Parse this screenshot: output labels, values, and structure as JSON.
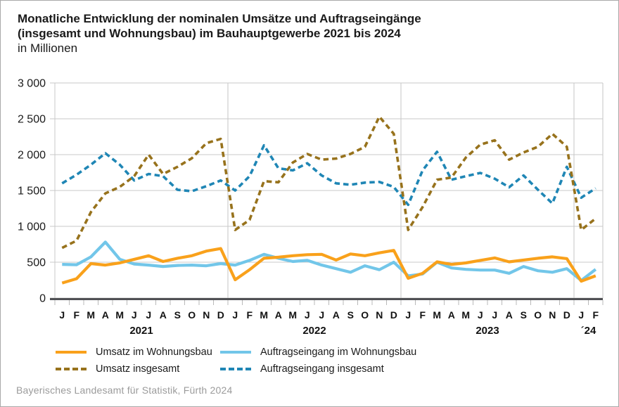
{
  "title": {
    "line1": "Monatliche Entwicklung der nominalen Umsätze und Auftragseingänge",
    "line2": "(insgesamt und Wohnungsbau) im Bauhauptgewerbe 2021 bis 2024",
    "line3": "in Millionen"
  },
  "footer": {
    "source": "Bayerisches Landesamt für Statistik, Fürth 2024"
  },
  "legend": {
    "items": [
      {
        "label": "Umsatz im Wohnungsbau",
        "color": "#F9A11B",
        "style": "solid"
      },
      {
        "label": "Umsatz insgesamt",
        "color": "#97721C",
        "style": "dashed"
      },
      {
        "label": "Auftragseingang im Wohnungsbau",
        "color": "#72C6E9",
        "style": "solid"
      },
      {
        "label": "Auftragseingang insgesamt",
        "color": "#1F86B5",
        "style": "dashed"
      }
    ]
  },
  "chart_data": {
    "type": "line",
    "title": "Monatliche Entwicklung der nominalen Umsätze und Auftragseingänge (insgesamt und Wohnungsbau) im Bauhauptgewerbe 2021 bis 2024",
    "ylabel": "in Millionen",
    "xlabel": "",
    "grid": true,
    "legend_position": "bottom",
    "ylim": [
      0,
      3000
    ],
    "yticks": [
      {
        "value": 3000,
        "label": "3 000"
      },
      {
        "value": 2500,
        "label": "2 500"
      },
      {
        "value": 2000,
        "label": "2 000"
      },
      {
        "value": 1500,
        "label": "1 500"
      },
      {
        "value": 1000,
        "label": "1 000"
      },
      {
        "value": 500,
        "label": "500"
      },
      {
        "value": 0,
        "label": "0"
      }
    ],
    "months": [
      "J",
      "F",
      "M",
      "A",
      "M",
      "J",
      "J",
      "A",
      "S",
      "O",
      "N",
      "D",
      "J",
      "F",
      "M",
      "A",
      "M",
      "J",
      "J",
      "A",
      "S",
      "O",
      "N",
      "D",
      "J",
      "F",
      "M",
      "A",
      "M",
      "J",
      "J",
      "A",
      "S",
      "O",
      "N",
      "D",
      "J",
      "F"
    ],
    "years": [
      {
        "label": "2021",
        "months": 12
      },
      {
        "label": "2022",
        "months": 12
      },
      {
        "label": "2023",
        "months": 12
      },
      {
        "label": "´24",
        "months": 2
      }
    ],
    "series": [
      {
        "name": "Auftragseingang insgesamt",
        "color": "#1F86B5",
        "style": "dashed",
        "values": [
          1600,
          1720,
          1860,
          2020,
          1860,
          1640,
          1730,
          1700,
          1510,
          1490,
          1560,
          1640,
          1500,
          1700,
          2130,
          1810,
          1780,
          1880,
          1710,
          1600,
          1580,
          1610,
          1620,
          1550,
          1300,
          1780,
          2040,
          1650,
          1700,
          1745,
          1665,
          1545,
          1710,
          1510,
          1320,
          1830,
          1400,
          1530
        ]
      },
      {
        "name": "Umsatz insgesamt",
        "color": "#97721C",
        "style": "dashed",
        "values": [
          700,
          800,
          1200,
          1460,
          1550,
          1700,
          2000,
          1730,
          1830,
          1950,
          2160,
          2220,
          950,
          1090,
          1630,
          1615,
          1890,
          2010,
          1930,
          1945,
          2010,
          2110,
          2530,
          2290,
          950,
          1270,
          1650,
          1680,
          1960,
          2140,
          2200,
          1930,
          2030,
          2110,
          2290,
          2110,
          950,
          1110
        ]
      },
      {
        "name": "Auftragseingang im Wohnungsbau",
        "color": "#72C6E9",
        "style": "solid",
        "values": [
          470,
          465,
          575,
          780,
          540,
          475,
          460,
          440,
          455,
          460,
          450,
          480,
          460,
          525,
          610,
          555,
          510,
          525,
          460,
          410,
          360,
          450,
          395,
          500,
          310,
          335,
          500,
          420,
          400,
          390,
          390,
          345,
          440,
          380,
          360,
          410,
          245,
          400
        ]
      },
      {
        "name": "Umsatz im Wohnungsbau",
        "color": "#F9A11B",
        "style": "solid",
        "values": [
          210,
          270,
          480,
          460,
          490,
          540,
          590,
          510,
          555,
          590,
          655,
          690,
          255,
          395,
          555,
          570,
          590,
          605,
          610,
          530,
          615,
          590,
          630,
          665,
          275,
          345,
          505,
          470,
          490,
          525,
          560,
          505,
          530,
          555,
          575,
          550,
          235,
          310
        ]
      }
    ]
  }
}
